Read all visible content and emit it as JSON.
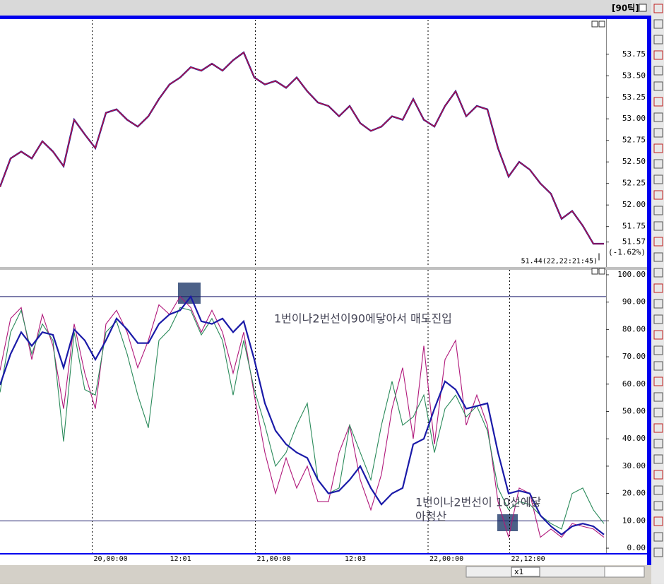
{
  "ui": {
    "period": "[90틱]",
    "zoom": "x1"
  },
  "chart_data": [
    {
      "type": "line",
      "color": "#c8103a",
      "xlim": [
        0,
        57
      ],
      "ylim": [
        51.28,
        54.15
      ],
      "yticks": [
        51.75,
        {
          "value": 52,
          "label": "52.00"
        },
        52.25,
        {
          "value": 52.5,
          "label": "52.50"
        },
        52.75,
        {
          "value": 53,
          "label": "53.00"
        },
        53.25,
        {
          "value": 53.5,
          "label": "53.50"
        },
        53.75
      ],
      "values": [
        52.21,
        52.54,
        52.62,
        52.54,
        52.74,
        52.62,
        52.45,
        52.99,
        52.82,
        52.66,
        53.07,
        53.11,
        52.99,
        52.91,
        53.03,
        53.23,
        53.4,
        53.48,
        53.6,
        53.56,
        53.64,
        53.56,
        53.68,
        53.77,
        53.48,
        53.4,
        53.44,
        53.36,
        53.48,
        53.32,
        53.19,
        53.15,
        53.03,
        53.15,
        52.95,
        52.86,
        52.91,
        53.03,
        52.99,
        53.23,
        52.99,
        52.91,
        53.15,
        53.32,
        53.03,
        53.15,
        53.11,
        52.66,
        52.33,
        52.5,
        52.41,
        52.25,
        52.13,
        51.84,
        51.93,
        51.76,
        51.55,
        51.55
      ],
      "last_price": 51.57,
      "change": {
        "value": -1.62,
        "label": "(-1.62%)"
      },
      "low": {
        "value": 51.44,
        "label": "51.44(22,22:21:45)"
      }
    },
    {
      "type": "line",
      "xlim": [
        0,
        57
      ],
      "ylim": [
        -1.8,
        101.8
      ],
      "xticks": [
        {
          "value": 8.7,
          "label": "20,00:00"
        },
        {
          "value": 15.9,
          "label": "12:01"
        },
        {
          "value": 24.1,
          "label": "21,00:00"
        },
        {
          "value": 32.4,
          "label": "12:03"
        },
        {
          "value": 40.4,
          "label": "22,00:00"
        },
        {
          "value": 48.1,
          "label": "22,12:00"
        }
      ],
      "yticks": [
        {
          "value": 0,
          "label": "0.00"
        },
        {
          "value": 10,
          "label": "10.00"
        },
        {
          "value": 20,
          "label": "20.00"
        },
        {
          "value": 30,
          "label": "30.00"
        },
        {
          "value": 40,
          "label": "40.00"
        },
        {
          "value": 50,
          "label": "50.00"
        },
        {
          "value": 60,
          "label": "60.00"
        },
        {
          "value": 70,
          "label": "70.00"
        },
        {
          "value": 80,
          "label": "80.00"
        },
        {
          "value": 90,
          "label": "90.00"
        },
        {
          "value": 100,
          "label": "100.00"
        }
      ],
      "hlines": [
        92,
        10
      ],
      "annotations": [
        "1번이나2번선이90에닿아서 매도진입",
        "1번이나2번선이 10선에닿",
        "아청산"
      ],
      "series": [
        {
          "color": "#b0177a",
          "values": [
            65,
            84,
            88,
            69,
            85.5,
            74,
            51,
            82,
            64,
            51,
            82,
            87,
            79,
            66,
            76,
            89,
            85.5,
            92,
            88,
            79,
            87,
            79,
            64,
            79,
            56,
            35,
            20,
            33,
            22,
            30,
            17,
            17,
            35,
            45,
            25,
            14,
            27,
            51,
            66,
            40,
            74,
            38,
            69,
            76,
            45,
            56,
            45,
            17,
            4,
            22,
            20,
            4,
            7,
            4,
            9,
            8,
            7,
            4
          ]
        },
        {
          "color": "#2a8a5a",
          "values": [
            57,
            79,
            87,
            71,
            82,
            76,
            39,
            79,
            58,
            56,
            79,
            83,
            71,
            56,
            44,
            76,
            80,
            88,
            87,
            78,
            84,
            76,
            56,
            76,
            58,
            45,
            30,
            35,
            45,
            53,
            25,
            20,
            22,
            45,
            35,
            25,
            45,
            61,
            45,
            48,
            56,
            35,
            51,
            56,
            48,
            52,
            43,
            22,
            14,
            17,
            16,
            12,
            9,
            7,
            20,
            22,
            14,
            9
          ]
        },
        {
          "color": "#1a1aa8",
          "values": [
            59.7,
            71,
            79,
            74,
            79,
            78,
            66,
            80,
            76,
            69,
            76,
            84,
            80,
            75,
            75,
            82,
            85.5,
            87,
            92,
            83,
            82,
            84,
            79,
            83,
            69,
            53,
            43,
            38,
            35,
            33,
            25,
            20,
            21,
            25,
            30,
            22,
            16,
            20,
            22,
            38,
            40,
            51,
            61,
            58,
            51,
            52,
            53,
            35,
            20,
            21,
            20,
            12,
            8,
            5,
            8,
            9,
            8,
            5
          ]
        }
      ]
    }
  ]
}
